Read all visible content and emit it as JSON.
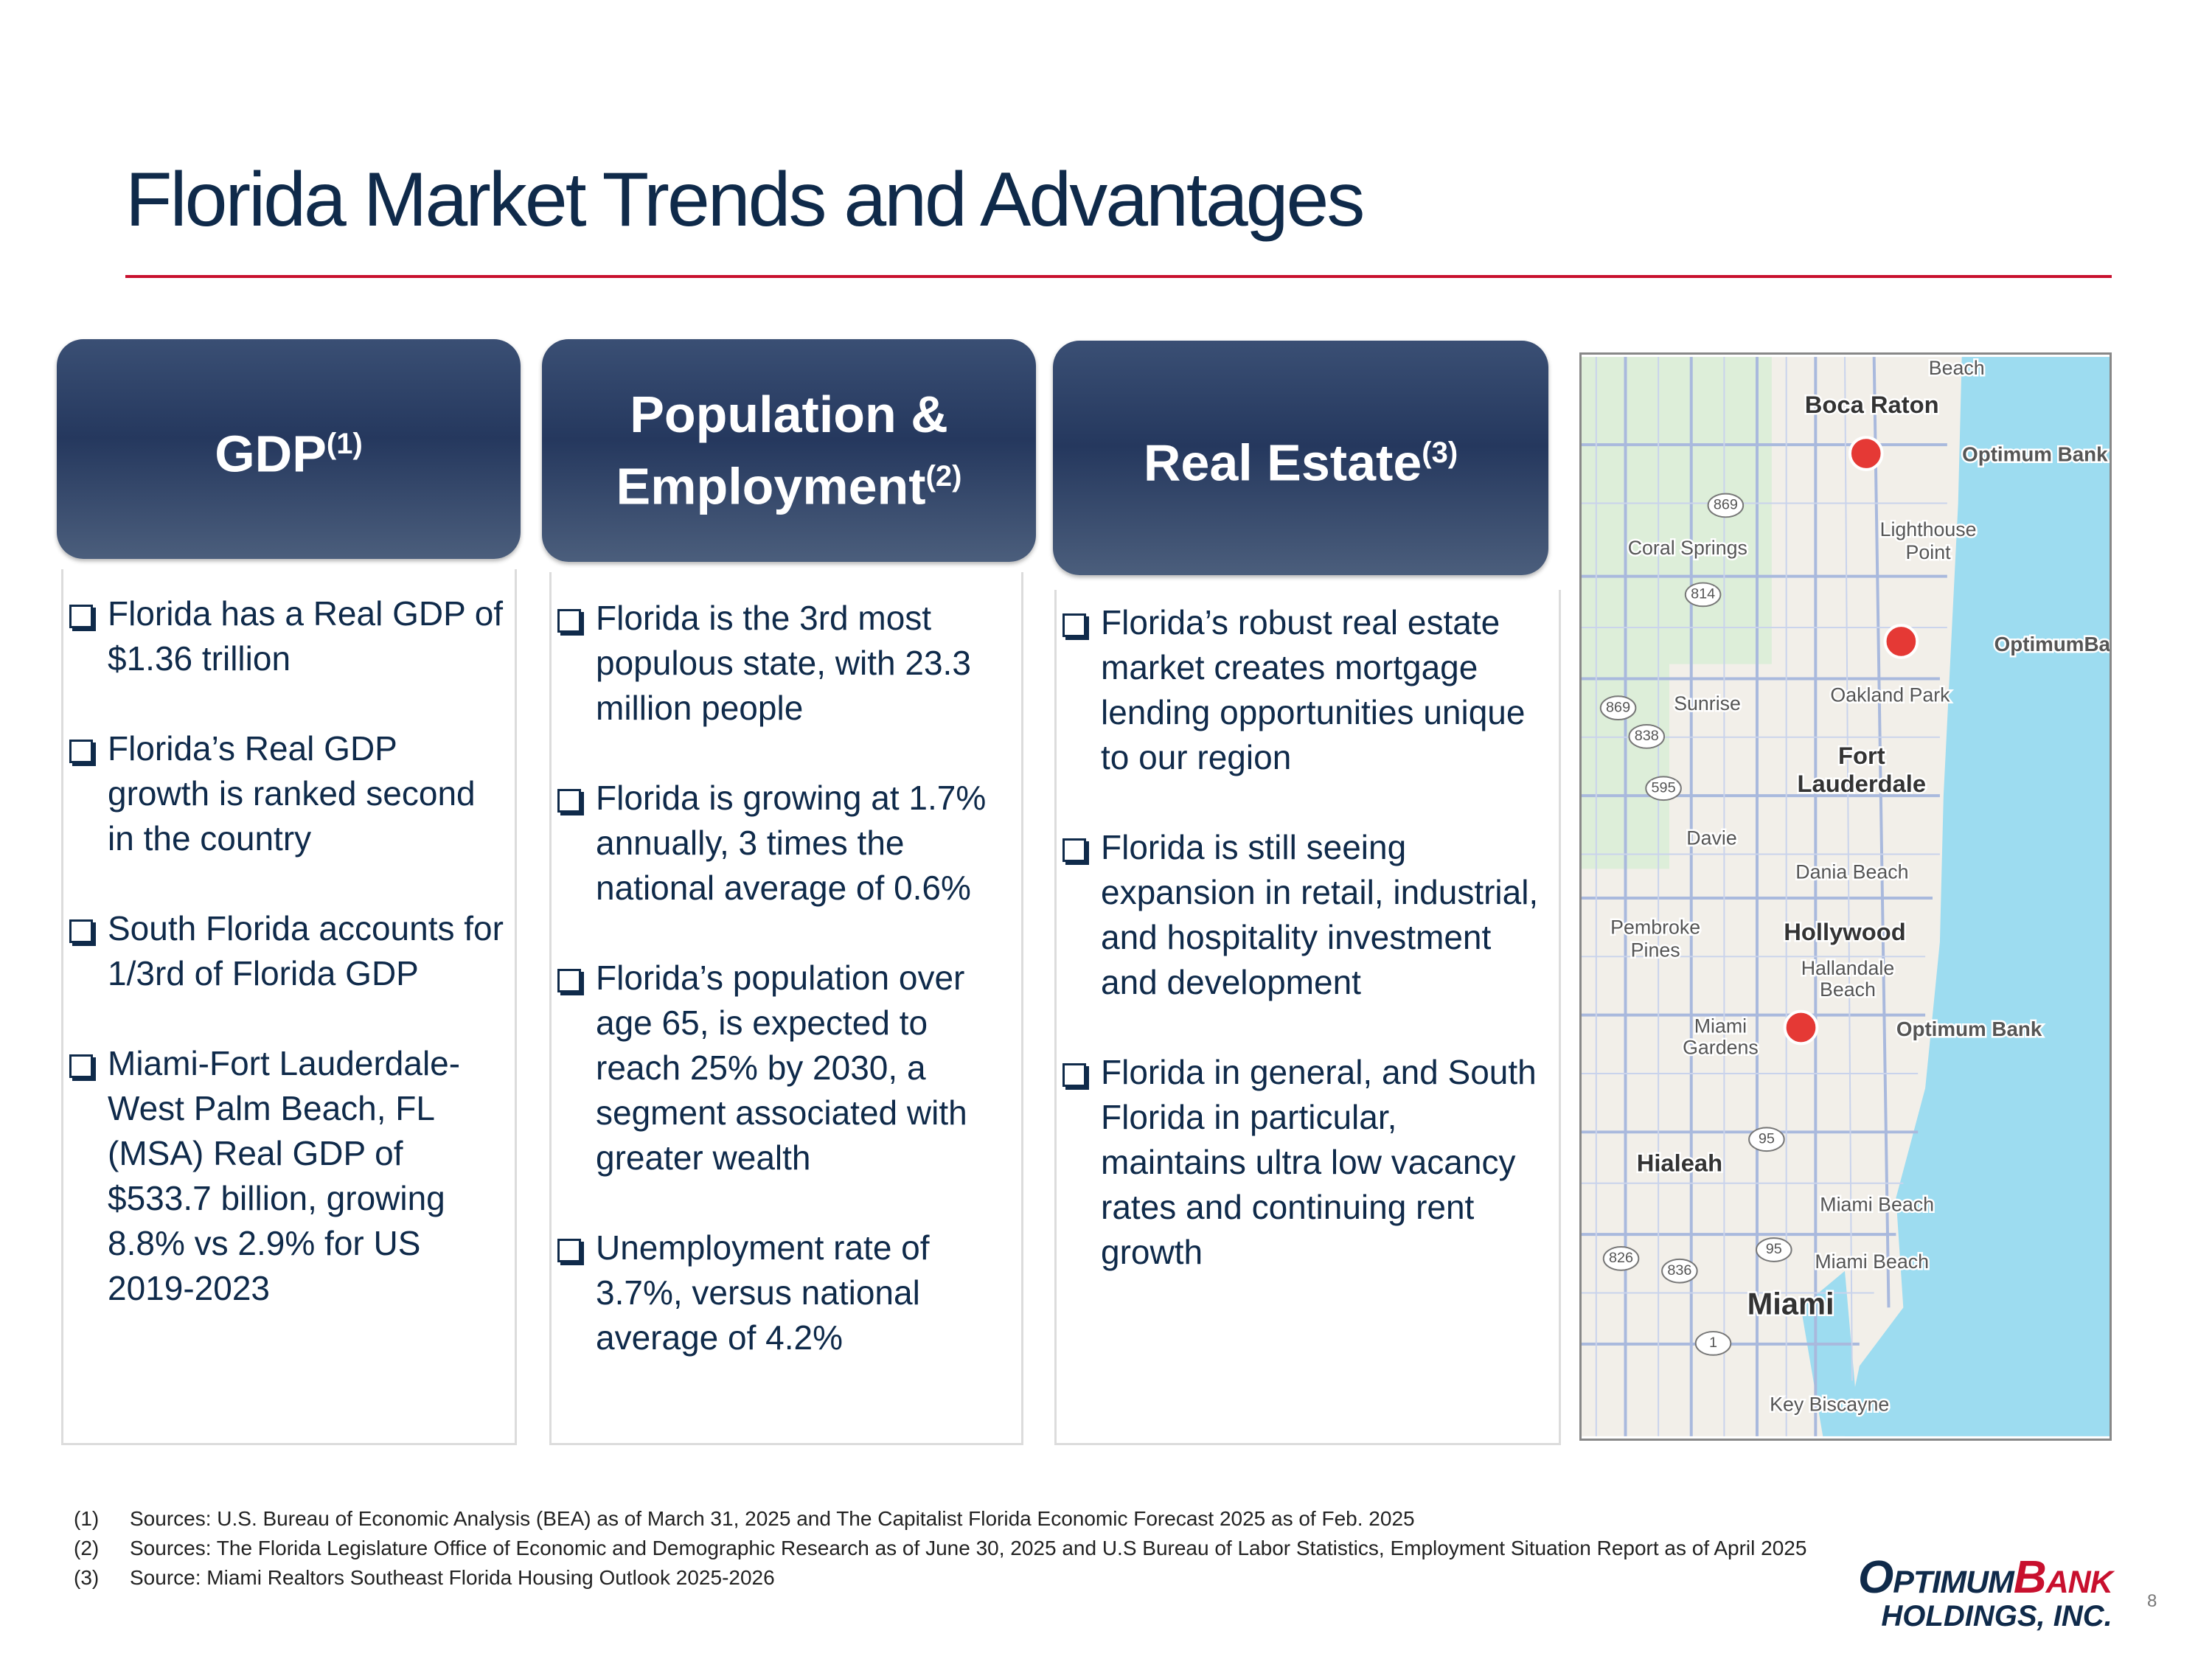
{
  "title": "Florida Market Trends and Advantages",
  "columns": [
    {
      "header": "GDP",
      "note": "(1)",
      "bullets": [
        "Florida has a Real GDP of $1.36 trillion",
        "Florida’s Real GDP growth is ranked second in the country",
        "South Florida accounts for 1/3rd of Florida GDP",
        "Miami-Fort Lauderdale-West Palm Beach, FL (MSA) Real GDP of $533.7 billion, growing 8.8% vs 2.9% for US 2019-2023"
      ]
    },
    {
      "header": "Population & Employment",
      "note": "(2)",
      "bullets": [
        "Florida is the 3rd most populous state, with 23.3 million people",
        "Florida is growing at 1.7% annually, 3 times the national average of 0.6%",
        "Florida’s population over age 65, is expected to reach 25% by 2030, a segment associated with greater wealth",
        "Unemployment rate of 3.7%, versus national average of 4.2%"
      ]
    },
    {
      "header": "Real Estate",
      "note": "(3)",
      "bullets": [
        "Florida’s robust real estate market creates mortgage lending opportunities unique to our region",
        "Florida is still seeing expansion in retail, industrial, and hospitality investment and development",
        "Florida in general, and South Florida in particular, maintains ultra low vacancy rates and continuing rent growth"
      ]
    }
  ],
  "map": {
    "labels": [
      "Beach",
      "Boca Raton",
      "Optimum Bank",
      "869",
      "Lighthouse",
      "Point",
      "Coral Springs",
      "814",
      "OptimumBank",
      "869",
      "Sunrise",
      "Oakland Park",
      "838",
      "Fort",
      "Lauderdale",
      "595",
      "Davie",
      "Dania Beach",
      "Pembroke",
      "Pines",
      "Hollywood",
      "Hallandale",
      "Beach",
      "Miami",
      "Gardens",
      "Optimum Bank",
      "95",
      "Hialeah",
      "Miami Beach",
      "826",
      "836",
      "95",
      "Miami Beach",
      "Miami",
      "1",
      "Key Biscayne"
    ]
  },
  "footnotes": [
    {
      "num": "(1)",
      "text": "Sources: U.S. Bureau of Economic Analysis (BEA) as of March 31, 2025 and The Capitalist Florida Economic Forecast 2025 as of Feb. 2025"
    },
    {
      "num": "(2)",
      "text": "Sources: The Florida Legislature Office of Economic and Demographic Research as of June 30, 2025 and U.S Bureau of Labor Statistics, Employment Situation Report as of April 2025"
    },
    {
      "num": "(3)",
      "text": "Source: Miami Realtors Southeast Florida Housing Outlook 2025-2026"
    }
  ],
  "logo": {
    "first": "Optimum",
    "second": "Bank",
    "sub": "HOLDINGS, INC."
  },
  "page": "8"
}
